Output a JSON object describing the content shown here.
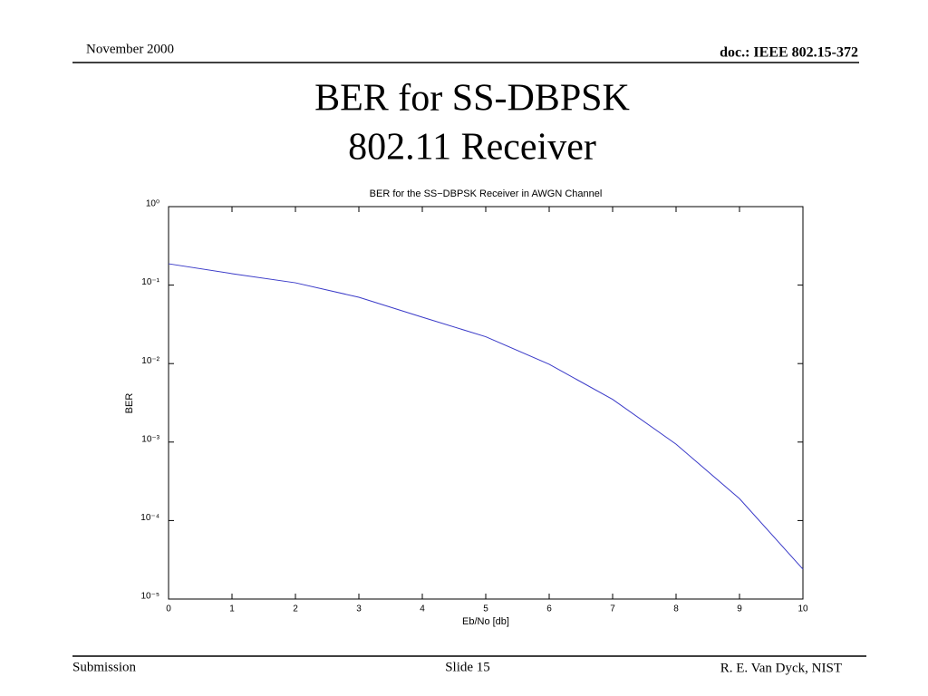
{
  "header": {
    "date": "November 2000",
    "doc": "doc.: IEEE 802.15-372"
  },
  "slide": {
    "title": [
      "BER for SS-DBPSK",
      "802.11 Receiver"
    ]
  },
  "footer": {
    "left": "Submission",
    "center": "Slide 15",
    "right": "R. E. Van Dyck, NIST"
  },
  "chart_data": {
    "type": "line",
    "title": "BER for the SS−DBPSK Receiver in AWGN Channel",
    "x_label": "Eb/No [db]",
    "y_label": "BER",
    "x": [
      0,
      1,
      2,
      3,
      4,
      5,
      6,
      7,
      8,
      9,
      10
    ],
    "series": [
      {
        "name": "BER",
        "color": "#3a3ac8",
        "values": [
          0.187,
          0.14,
          0.107,
          0.07,
          0.039,
          0.022,
          0.0098,
          0.0035,
          0.00094,
          0.00019,
          2.4e-05
        ]
      }
    ],
    "xlim": [
      0,
      10
    ],
    "xticks": [
      0,
      1,
      2,
      3,
      4,
      5,
      6,
      7,
      8,
      9,
      10
    ],
    "ylim": [
      1e-05,
      1
    ],
    "log_y": true,
    "yticks": [
      {
        "value": 1e-05,
        "label": "10⁻⁵"
      },
      {
        "value": 0.0001,
        "label": "10⁻⁴"
      },
      {
        "value": 0.001,
        "label": "10⁻³"
      },
      {
        "value": 0.01,
        "label": "10⁻²"
      },
      {
        "value": 0.1,
        "label": "10⁻¹"
      },
      {
        "value": 1,
        "label": "10⁰"
      }
    ],
    "grid": false
  }
}
